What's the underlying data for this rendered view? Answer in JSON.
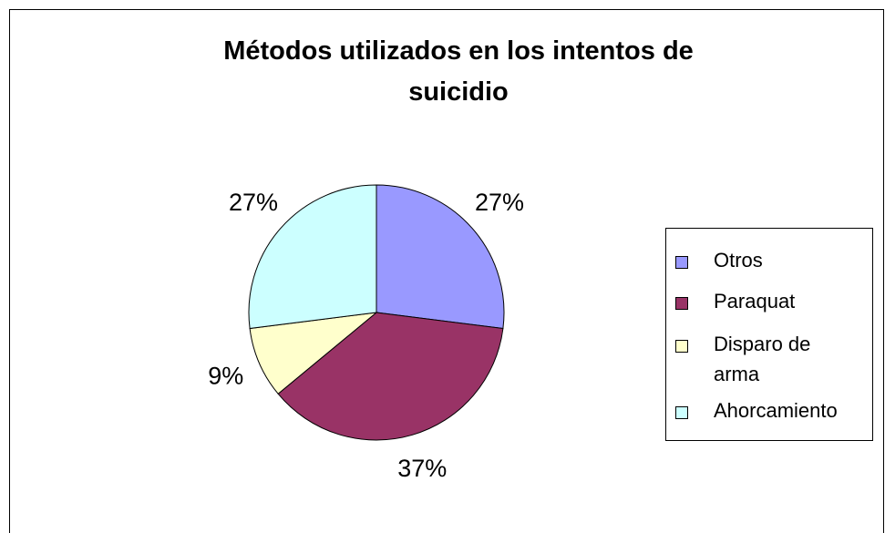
{
  "chart_data": {
    "type": "pie",
    "title": "Métodos utilizados en los intentos de suicidio",
    "categories": [
      "Otros",
      "Paraquat",
      "Disparo de arma",
      "Ahorcamiento"
    ],
    "values": [
      27,
      37,
      9,
      27
    ],
    "value_labels": [
      "27%",
      "37%",
      "9%",
      "27%"
    ],
    "colors": [
      "#9999ff",
      "#993366",
      "#ffffcc",
      "#ccffff"
    ],
    "legend": "right"
  }
}
